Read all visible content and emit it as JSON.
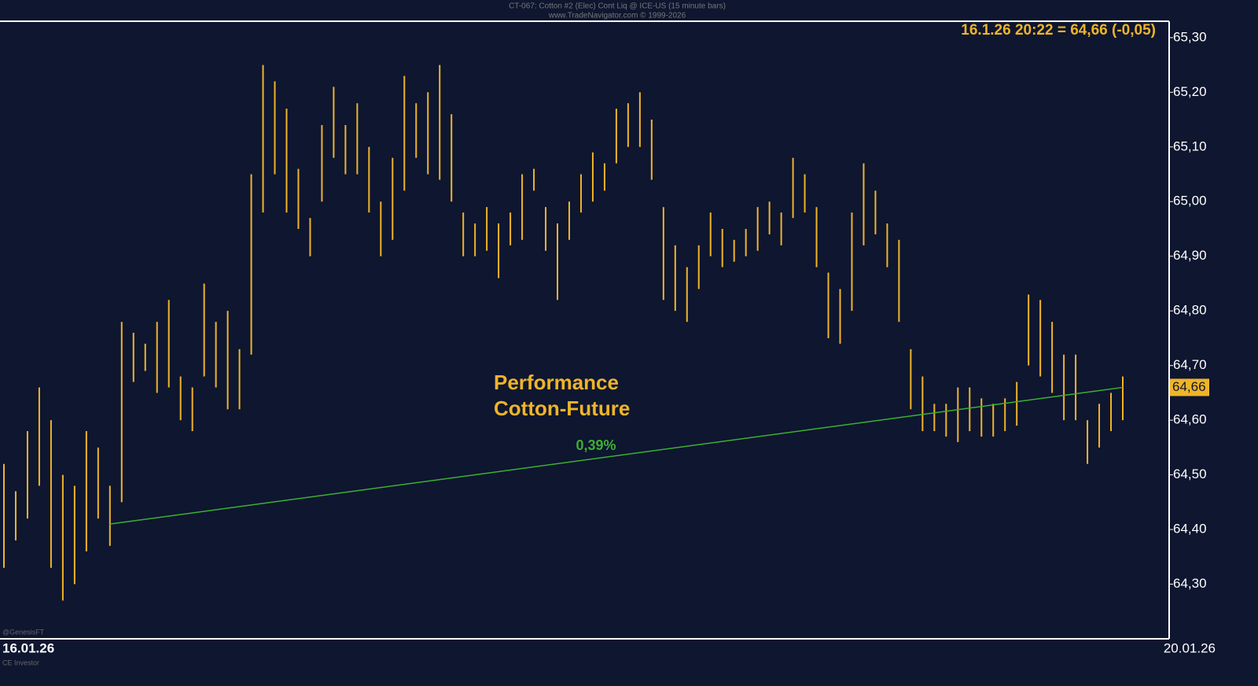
{
  "chart_data": {
    "type": "range-bars",
    "title": "CT-067: Cotton #2 (Elec) Cont Liq @ ICE-US (15 minute bars)",
    "subtitle": "www.TradeNavigator.com © 1999-2026",
    "info": "16.1.26 20:22 = 64,66 (-0,05)",
    "annotation": [
      "Performance",
      "Cotton-Future"
    ],
    "watermarks": [
      "@GenesisFT",
      "CE Investor"
    ],
    "x_labels": [
      "16.01.26",
      "20.01.26"
    ],
    "color": "#f0b429",
    "series": [
      {
        "name": "High",
        "values": [
          64.52,
          64.47,
          64.58,
          64.66,
          64.6,
          64.5,
          64.48,
          64.58,
          64.55,
          64.48,
          64.78,
          64.76,
          64.74,
          64.78,
          64.82,
          64.68,
          64.66,
          64.85,
          64.78,
          64.8,
          64.73,
          65.05,
          65.25,
          65.22,
          65.17,
          65.06,
          64.97,
          65.14,
          65.21,
          65.14,
          65.18,
          65.1,
          65.0,
          65.08,
          65.23,
          65.18,
          65.2,
          65.25,
          65.16,
          64.98,
          64.96,
          64.99,
          64.96,
          64.98,
          65.05,
          65.06,
          64.99,
          64.96,
          65.0,
          65.05,
          65.09,
          65.07,
          65.17,
          65.18,
          65.2,
          65.15,
          64.99,
          64.92,
          64.88,
          64.92,
          64.98,
          64.95,
          64.93,
          64.95,
          64.99,
          65.0,
          64.98,
          65.08,
          65.05,
          64.99,
          64.87,
          64.84,
          64.98,
          65.07,
          65.02,
          64.96,
          64.93,
          64.73,
          64.68,
          64.63,
          64.63,
          64.66,
          64.66,
          64.64,
          64.63,
          64.64,
          64.67,
          64.83,
          64.82,
          64.78,
          64.72,
          64.72,
          64.6,
          64.63,
          64.65,
          64.68
        ]
      },
      {
        "name": "Low",
        "values": [
          64.33,
          64.38,
          64.42,
          64.48,
          64.33,
          64.27,
          64.3,
          64.36,
          64.42,
          64.37,
          64.45,
          64.67,
          64.69,
          64.65,
          64.66,
          64.6,
          64.58,
          64.68,
          64.66,
          64.62,
          64.62,
          64.72,
          64.98,
          65.05,
          64.98,
          64.95,
          64.9,
          65.0,
          65.08,
          65.05,
          65.05,
          64.98,
          64.9,
          64.93,
          65.02,
          65.08,
          65.05,
          65.04,
          65.0,
          64.9,
          64.9,
          64.91,
          64.86,
          64.92,
          64.93,
          65.02,
          64.91,
          64.82,
          64.93,
          64.98,
          65.0,
          65.02,
          65.07,
          65.1,
          65.1,
          65.04,
          64.82,
          64.8,
          64.78,
          64.84,
          64.9,
          64.88,
          64.89,
          64.9,
          64.91,
          64.94,
          64.92,
          64.97,
          64.98,
          64.88,
          64.75,
          64.74,
          64.8,
          64.92,
          64.94,
          64.88,
          64.78,
          64.62,
          64.58,
          64.58,
          64.57,
          64.56,
          64.58,
          64.57,
          64.57,
          64.58,
          64.59,
          64.7,
          64.68,
          64.65,
          64.6,
          64.6,
          64.52,
          64.55,
          64.58,
          64.6
        ]
      }
    ],
    "trendline": {
      "start": 64.41,
      "end": 64.66,
      "color": "#3cb030",
      "label": "0,39%"
    },
    "last": {
      "value": 64.66,
      "label": "64,66"
    },
    "ylim": [
      64.2,
      65.33
    ],
    "yticks": [
      {
        "value": 64.3,
        "label": "64,30"
      },
      {
        "value": 64.4,
        "label": "64,40"
      },
      {
        "value": 64.5,
        "label": "64,50"
      },
      {
        "value": 64.6,
        "label": "64,60"
      },
      {
        "value": 64.7,
        "label": "64,70"
      },
      {
        "value": 64.8,
        "label": "64,80"
      },
      {
        "value": 64.9,
        "label": "64,90"
      },
      {
        "value": 65.0,
        "label": "65,00"
      },
      {
        "value": 65.1,
        "label": "65,10"
      },
      {
        "value": 65.2,
        "label": "65,20"
      },
      {
        "value": 65.3,
        "label": "65,30"
      }
    ]
  }
}
